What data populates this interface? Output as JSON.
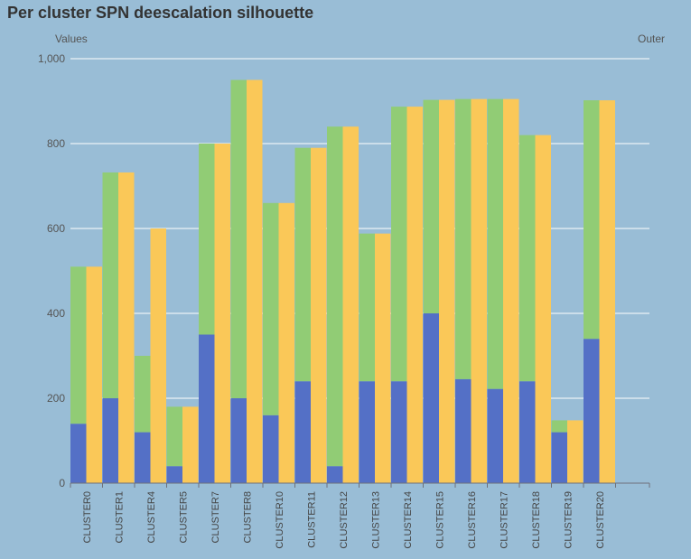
{
  "chart_data": {
    "type": "bar",
    "title": "Per cluster SPN deescalation silhouette",
    "ylabel": "Values",
    "y2label": "Outer",
    "ylim": [
      0,
      1000
    ],
    "yticks": [
      "0",
      "200",
      "400",
      "600",
      "800",
      "1,000"
    ],
    "grid": true,
    "categories": [
      "CLUSTER0",
      "CLUSTER1",
      "CLUSTER4",
      "CLUSTER5",
      "CLUSTER7",
      "CLUSTER8",
      "CLUSTER10",
      "CLUSTER11",
      "CLUSTER12",
      "CLUSTER13",
      "CLUSTER14",
      "CLUSTER15",
      "CLUSTER16",
      "CLUSTER17",
      "CLUSTER18",
      "CLUSTER19",
      "CLUSTER20"
    ],
    "series": [
      {
        "stack": "inner",
        "color": "#5470c6",
        "values": [
          140,
          200,
          120,
          40,
          350,
          200,
          160,
          240,
          40,
          240,
          240,
          400,
          245,
          222,
          240,
          120,
          340
        ]
      },
      {
        "stack": "inner",
        "color": "#91cc75",
        "values": [
          370,
          532,
          180,
          140,
          450,
          750,
          500,
          550,
          800,
          348,
          647,
          503,
          660,
          683,
          580,
          28,
          562
        ]
      },
      {
        "stack": "outer",
        "color": "#fac858",
        "values": [
          510,
          732,
          600,
          180,
          800,
          950,
          660,
          790,
          840,
          588,
          887,
          903,
          905,
          905,
          820,
          148,
          902
        ]
      }
    ]
  }
}
